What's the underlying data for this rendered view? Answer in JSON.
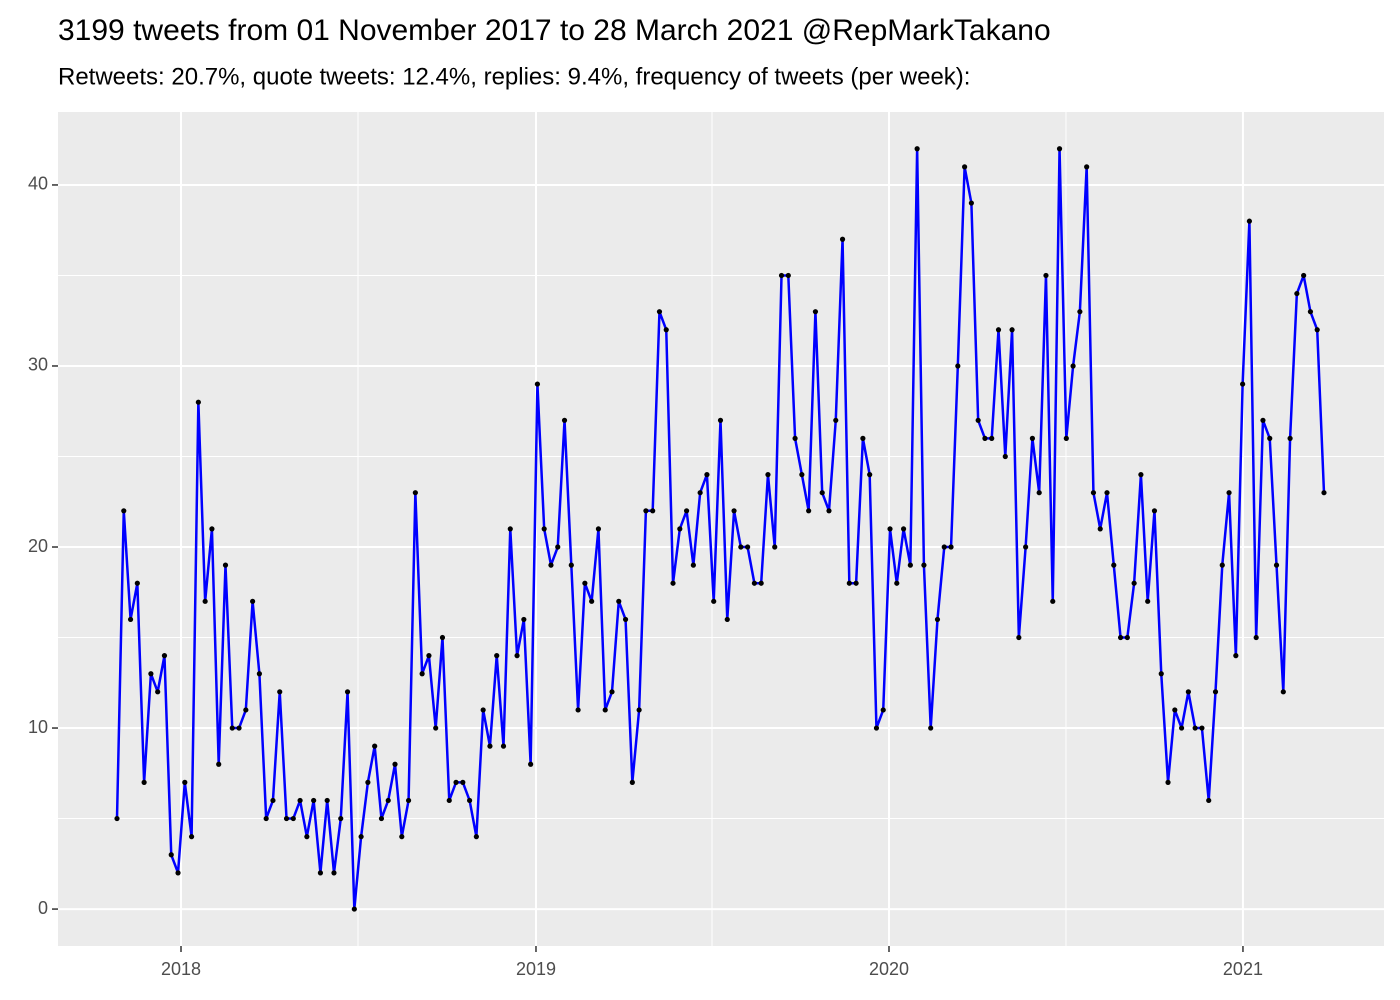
{
  "chart_data": {
    "type": "line",
    "title": "3199 tweets from 01 November 2017 to 28 March 2021 @RepMarkTakano",
    "subtitle": "Retweets: 20.7%, quote tweets: 12.4%, replies: 9.4%, frequency of tweets (per week):",
    "x": [
      0,
      1,
      2,
      3,
      4,
      5,
      6,
      7,
      8,
      9,
      10,
      11,
      12,
      13,
      14,
      15,
      16,
      17,
      18,
      19,
      20,
      21,
      22,
      23,
      24,
      25,
      26,
      27,
      28,
      29,
      30,
      31,
      32,
      33,
      34,
      35,
      36,
      37,
      38,
      39,
      40,
      41,
      42,
      43,
      44,
      45,
      46,
      47,
      48,
      49,
      50,
      51,
      52,
      53,
      54,
      55,
      56,
      57,
      58,
      59,
      60,
      61,
      62,
      63,
      64,
      65,
      66,
      67,
      68,
      69,
      70,
      71,
      72,
      73,
      74,
      75,
      76,
      77,
      78,
      79,
      80,
      81,
      82,
      83,
      84,
      85,
      86,
      87,
      88,
      89,
      90,
      91,
      92,
      93,
      94,
      95,
      96,
      97,
      98,
      99,
      100,
      101,
      102,
      103,
      104,
      105,
      106,
      107,
      108,
      109,
      110,
      111,
      112,
      113,
      114,
      115,
      116,
      117,
      118,
      119,
      120,
      121,
      122,
      123,
      124,
      125,
      126,
      127,
      128,
      129,
      130,
      131,
      132,
      133,
      134,
      135,
      136,
      137,
      138,
      139,
      140,
      141,
      142,
      143,
      144,
      145,
      146,
      147,
      148,
      149,
      150,
      151,
      152,
      153,
      154,
      155,
      156,
      157,
      158,
      159,
      160,
      161,
      162,
      163,
      164,
      165,
      166,
      167,
      168,
      169,
      170,
      171,
      172,
      173,
      174,
      175,
      176,
      177,
      178
    ],
    "series": [
      {
        "color": "#0000ff",
        "point_color": "#000000",
        "values": [
          5,
          22,
          16,
          18,
          7,
          13,
          12,
          14,
          3,
          2,
          7,
          4,
          28,
          17,
          21,
          8,
          19,
          10,
          10,
          11,
          17,
          13,
          5,
          6,
          12,
          5,
          5,
          6,
          4,
          6,
          2,
          6,
          2,
          5,
          12,
          0,
          4,
          7,
          9,
          5,
          6,
          8,
          4,
          6,
          23,
          13,
          14,
          10,
          15,
          6,
          7,
          7,
          6,
          4,
          11,
          9,
          14,
          9,
          21,
          14,
          16,
          8,
          29,
          21,
          19,
          20,
          27,
          19,
          11,
          18,
          17,
          21,
          11,
          12,
          17,
          16,
          7,
          11,
          22,
          22,
          33,
          32,
          18,
          21,
          22,
          19,
          23,
          24,
          17,
          27,
          16,
          22,
          20,
          20,
          18,
          18,
          24,
          20,
          35,
          35,
          26,
          24,
          22,
          33,
          23,
          22,
          27,
          37,
          18,
          18,
          26,
          24,
          10,
          11,
          21,
          18,
          21,
          19,
          42,
          19,
          10,
          16,
          20,
          20,
          30,
          41,
          39,
          27,
          26,
          26,
          32,
          25,
          32,
          15,
          20,
          26,
          23,
          35,
          17,
          42,
          26,
          30,
          33,
          41,
          23,
          21,
          23,
          19,
          15,
          15,
          18,
          24,
          17,
          22,
          13,
          7,
          11,
          10,
          12,
          10,
          10,
          6,
          12,
          19,
          23,
          14,
          29,
          38,
          15,
          27,
          26,
          19,
          12,
          26,
          34,
          35,
          33,
          32,
          23
        ]
      }
    ],
    "xlim": [
      -8.7,
      186.85
    ],
    "xticks": [
      {
        "value": 9.44,
        "label": "2018"
      },
      {
        "value": 61.79,
        "label": "2019"
      },
      {
        "value": 113.85,
        "label": "2020"
      },
      {
        "value": 166.05,
        "label": "2021"
      }
    ],
    "xminorticks": [
      35.54,
      87.75,
      139.95
    ],
    "ylim": [
      -2.04,
      44.03
    ],
    "yticks": [
      0,
      10,
      20,
      30,
      40
    ],
    "yminorticks": [
      5,
      15,
      25,
      35
    ],
    "grid": true
  }
}
